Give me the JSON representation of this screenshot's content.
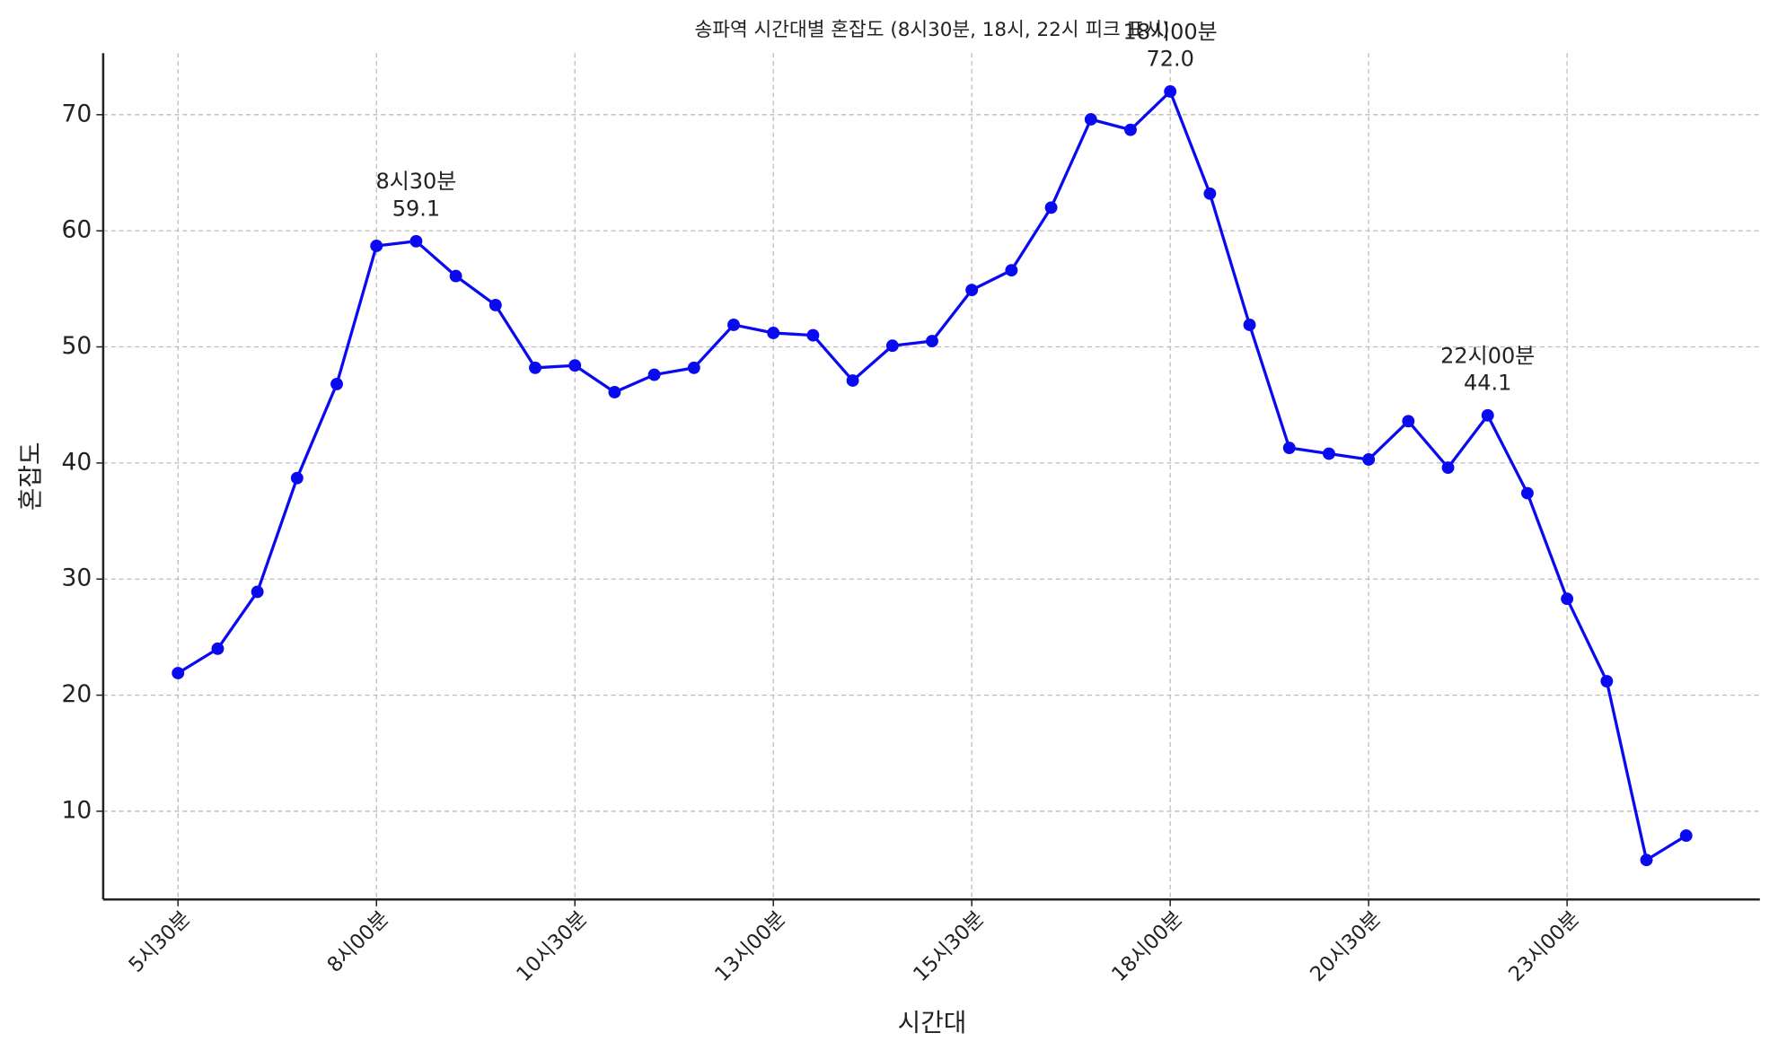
{
  "chart_data": {
    "type": "line",
    "title": "송파역 시간대별 혼잡도 (8시30분, 18시, 22시 피크 표시)",
    "x_label": "시간대",
    "y_label": "혼잡도",
    "categories": [
      "5시30분",
      null,
      null,
      null,
      null,
      "8시00분",
      null,
      null,
      null,
      null,
      "10시30분",
      null,
      null,
      null,
      null,
      "13시00분",
      null,
      null,
      null,
      null,
      "15시30분",
      null,
      null,
      null,
      null,
      "18시00분",
      null,
      null,
      null,
      null,
      "20시30분",
      null,
      null,
      null,
      null,
      "23시00분",
      null,
      null,
      null
    ],
    "series": [
      {
        "name": "혼잡도",
        "color": "#0a0af0",
        "values": [
          21.9,
          24.0,
          28.9,
          38.7,
          46.8,
          58.7,
          59.1,
          56.1,
          53.6,
          48.2,
          48.4,
          46.1,
          47.6,
          48.2,
          51.9,
          51.2,
          51.0,
          47.1,
          50.1,
          50.5,
          54.9,
          56.6,
          62.0,
          69.6,
          68.7,
          72.0,
          63.2,
          51.9,
          41.3,
          40.8,
          40.3,
          43.6,
          39.6,
          44.1,
          37.4,
          28.3,
          21.2,
          5.8,
          7.9
        ]
      }
    ],
    "annotations": [
      {
        "label": "8시30분",
        "value": 59.1
      },
      {
        "label": "18시00분",
        "value": 72,
        "value_label": "72.0"
      },
      {
        "label": "22시00분",
        "value": 44.1
      }
    ],
    "ylim": [
      2.4,
      75.3
    ],
    "yticks": [
      10,
      20,
      30,
      40,
      50,
      60,
      70
    ],
    "grid": true
  }
}
